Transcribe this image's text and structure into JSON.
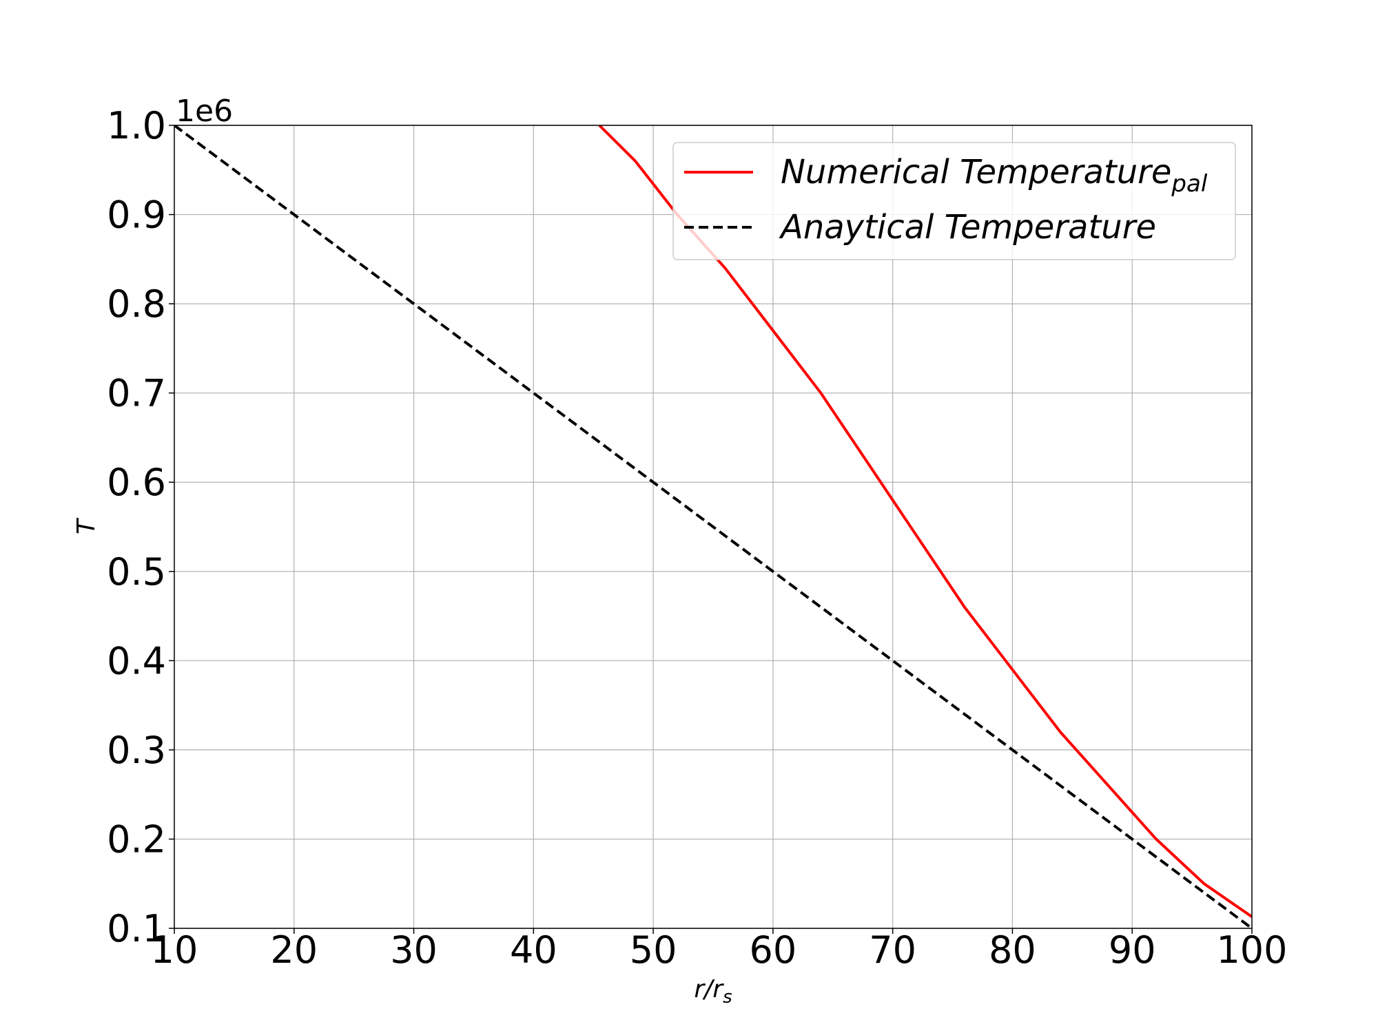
{
  "chart_data": {
    "type": "line",
    "title": "",
    "xlabel": "r/r",
    "xlabel_sub": "s",
    "ylabel": "T",
    "y_offset_label": "1e6",
    "xlim": [
      10,
      100
    ],
    "ylim": [
      0.1,
      1.0
    ],
    "x_ticks": [
      10,
      20,
      30,
      40,
      50,
      60,
      70,
      80,
      90,
      100
    ],
    "x_tick_labels": [
      "10",
      "20",
      "30",
      "40",
      "50",
      "60",
      "70",
      "80",
      "90",
      "100"
    ],
    "y_ticks": [
      0.1,
      0.2,
      0.3,
      0.4,
      0.5,
      0.6,
      0.7,
      0.8,
      0.9,
      1.0
    ],
    "y_tick_labels": [
      "0.1",
      "0.2",
      "0.3",
      "0.4",
      "0.5",
      "0.6",
      "0.7",
      "0.8",
      "0.9",
      "1.0"
    ],
    "grid": true,
    "legend_position": "top-right",
    "series": [
      {
        "name": "Numerical Temperature",
        "name_sub": "pal",
        "color": "#ff0000",
        "style": "solid",
        "x": [
          45.5,
          48.5,
          52,
          56,
          60,
          64,
          68,
          72,
          76,
          80,
          84,
          88,
          92,
          96,
          100
        ],
        "y": [
          1.0,
          0.96,
          0.9,
          0.84,
          0.77,
          0.7,
          0.62,
          0.54,
          0.46,
          0.39,
          0.32,
          0.26,
          0.2,
          0.15,
          0.113
        ]
      },
      {
        "name": "Anaytical Temperature",
        "color": "#000000",
        "style": "dashed",
        "x": [
          10,
          100
        ],
        "y": [
          1.0,
          0.1
        ]
      }
    ]
  }
}
